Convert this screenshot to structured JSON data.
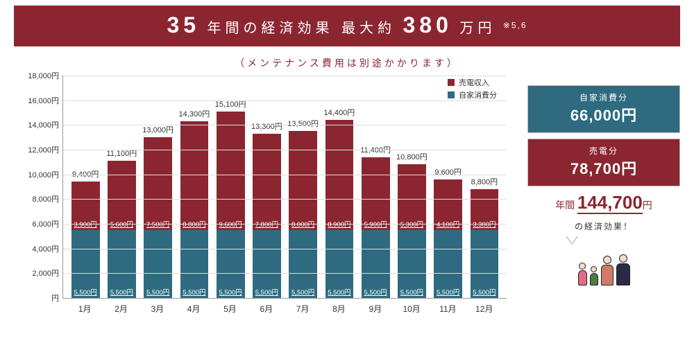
{
  "banner": {
    "n_years": "35",
    "text1": "年間の経済効果 最大約",
    "n_amount": "380",
    "text2": "万円",
    "note": "※5,6"
  },
  "subtitle": "（メンテナンス費用は別途かかります）",
  "chart": {
    "type": "stacked-bar",
    "ymax": 18000,
    "ytick_step": 2000,
    "yunit": "円",
    "colors": {
      "upper": "#8b2631",
      "lower": "#2e6b80",
      "grid": "#dddddd",
      "axis": "#999999",
      "bg": "#ffffff"
    },
    "legend": [
      {
        "label": "売電収入",
        "color": "#8b2631"
      },
      {
        "label": "自家消費分",
        "color": "#2e6b80"
      }
    ],
    "months": [
      "1月",
      "2月",
      "3月",
      "4月",
      "5月",
      "6月",
      "7月",
      "8月",
      "9月",
      "10月",
      "11月",
      "12月"
    ],
    "totals": [
      9400,
      11100,
      13000,
      14300,
      15100,
      13300,
      13500,
      14400,
      11400,
      10800,
      9600,
      8800
    ],
    "upper_vals": [
      3900,
      5600,
      7500,
      8800,
      9600,
      7800,
      8000,
      8900,
      5900,
      5300,
      4100,
      3300
    ],
    "lower_vals": [
      5500,
      5500,
      5500,
      5500,
      5500,
      5500,
      5500,
      5500,
      5500,
      5500,
      5500,
      5500
    ],
    "upper_labels": [
      "3,900円",
      "5,600円",
      "7,500円",
      "8,800円",
      "9,600円",
      "7,800円",
      "8,000円",
      "8,900円",
      "5,900円",
      "5,300円",
      "4,100円",
      "3,300円"
    ],
    "lower_labels": [
      "5,500円",
      "5,500円",
      "5,500円",
      "5,500円",
      "5,500円",
      "5,500円",
      "5,500円",
      "5,500円",
      "5,500円",
      "5,500円",
      "5,500円",
      "5,500円"
    ],
    "total_labels": [
      "9,400円",
      "11,100円",
      "13,000円",
      "14,300円",
      "15,100円",
      "13,300円",
      "13,500円",
      "14,400円",
      "11,400円",
      "10,800円",
      "9,600円",
      "8,800円"
    ]
  },
  "summary": {
    "box1": {
      "label": "自家消費分",
      "value": "66,000円",
      "bg": "#2e6b80"
    },
    "box2": {
      "label": "売電分",
      "value": "78,700円",
      "bg": "#8b2631"
    },
    "annual_prefix": "年間",
    "annual_value": "144,700",
    "annual_suffix": "円",
    "tagline": "の経済効果！"
  },
  "family": [
    {
      "head": 10,
      "bodyW": 13,
      "bodyH": 22,
      "color": "#de6e82"
    },
    {
      "head": 9,
      "bodyW": 12,
      "bodyH": 18,
      "color": "#4f7a3f"
    },
    {
      "head": 12,
      "bodyW": 18,
      "bodyH": 30,
      "color": "#d27a6a"
    },
    {
      "head": 12,
      "bodyW": 20,
      "bodyH": 32,
      "color": "#2a2a45"
    }
  ]
}
